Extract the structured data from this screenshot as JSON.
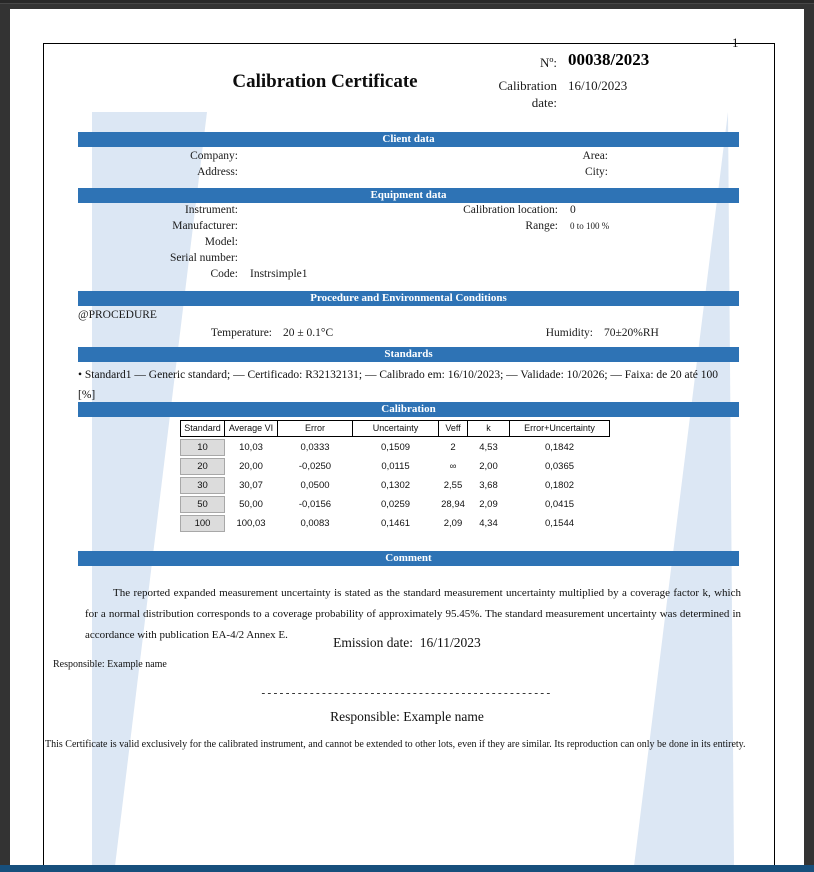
{
  "page_number": "1",
  "header": {
    "title": "Calibration Certificate",
    "number_label": "Nº:",
    "number_value": "00038/2023",
    "date_label": "Calibration date:",
    "date_value": "16/10/2023"
  },
  "client": {
    "title": "Client data",
    "rows": [
      {
        "l1": "Company:",
        "v1": "",
        "l2": "Area:",
        "v2": ""
      },
      {
        "l1": "Address:",
        "v1": "",
        "l2": "City:",
        "v2": ""
      }
    ]
  },
  "equipment": {
    "title": "Equipment data",
    "left": [
      {
        "label": "Instrument:",
        "value": ""
      },
      {
        "label": "Manufacturer:",
        "value": ""
      },
      {
        "label": "Model:",
        "value": ""
      },
      {
        "label": "Serial number:",
        "value": ""
      },
      {
        "label": "Code:",
        "value": "Instrsimple1"
      }
    ],
    "right": [
      {
        "label": "Calibration location:",
        "value": "0"
      },
      {
        "label": "Range:",
        "value": "0 to 100 %"
      }
    ]
  },
  "procedure": {
    "title": "Procedure and Environmental Conditions",
    "procedure_name": "@PROCEDURE",
    "temperature_label": "Temperature:",
    "temperature_value": "20 ± 0.1°C",
    "humidity_label": "Humidity:",
    "humidity_value": "70±20%RH"
  },
  "standards": {
    "title": "Standards",
    "text": "• Standard1  — Generic standard;  — Certificado: R32132131;  — Calibrado em: 16/10/2023;  — Validade: 10/2026;  — Faixa: de 20  até 100  [%]"
  },
  "calibration": {
    "title": "Calibration",
    "table": {
      "headers": [
        "Standard",
        "Average VI",
        "Error",
        "Uncertainty",
        "Veff",
        "k",
        "Error+Uncertainty"
      ],
      "rows": [
        [
          "10",
          "10,03",
          "0,0333",
          "0,1509",
          "2",
          "4,53",
          "0,1842"
        ],
        [
          "20",
          "20,00",
          "-0,0250",
          "0,0115",
          "∞",
          "2,00",
          "0,0365"
        ],
        [
          "30",
          "30,07",
          "0,0500",
          "0,1302",
          "2,55",
          "3,68",
          "0,1802"
        ],
        [
          "50",
          "50,00",
          "-0,0156",
          "0,0259",
          "28,94",
          "2,09",
          "0,0415"
        ],
        [
          "100",
          "100,03",
          "0,0083",
          "0,1461",
          "2,09",
          "4,34",
          "0,1544"
        ]
      ]
    }
  },
  "comment": {
    "title": "Comment",
    "text": "The reported expanded measurement uncertainty is stated as the standard measurement uncertainty multiplied by a coverage factor k, which for a normal distribution corresponds to a coverage probability of approximately 95.45%. The standard measurement uncertainty was determined in accordance with publication EA-4/2 Annex E.",
    "emission_label": "Emission date:",
    "emission_value": "16/11/2023"
  },
  "signature": {
    "responsible_line": "Responsible:  Example  name",
    "dashed_line": "------------------------------------------------",
    "responsible_center": "Responsible: Example name"
  },
  "disclaimer": "This Certificate is valid exclusively for the calibrated instrument, and cannot be extended to other lots, even if they are similar.  Its reproduction can only be done in its entirety.",
  "colors": {
    "accent": "#2E73B5",
    "bottom_bar": "#174F7C",
    "watermark": "#DCE7F4"
  }
}
